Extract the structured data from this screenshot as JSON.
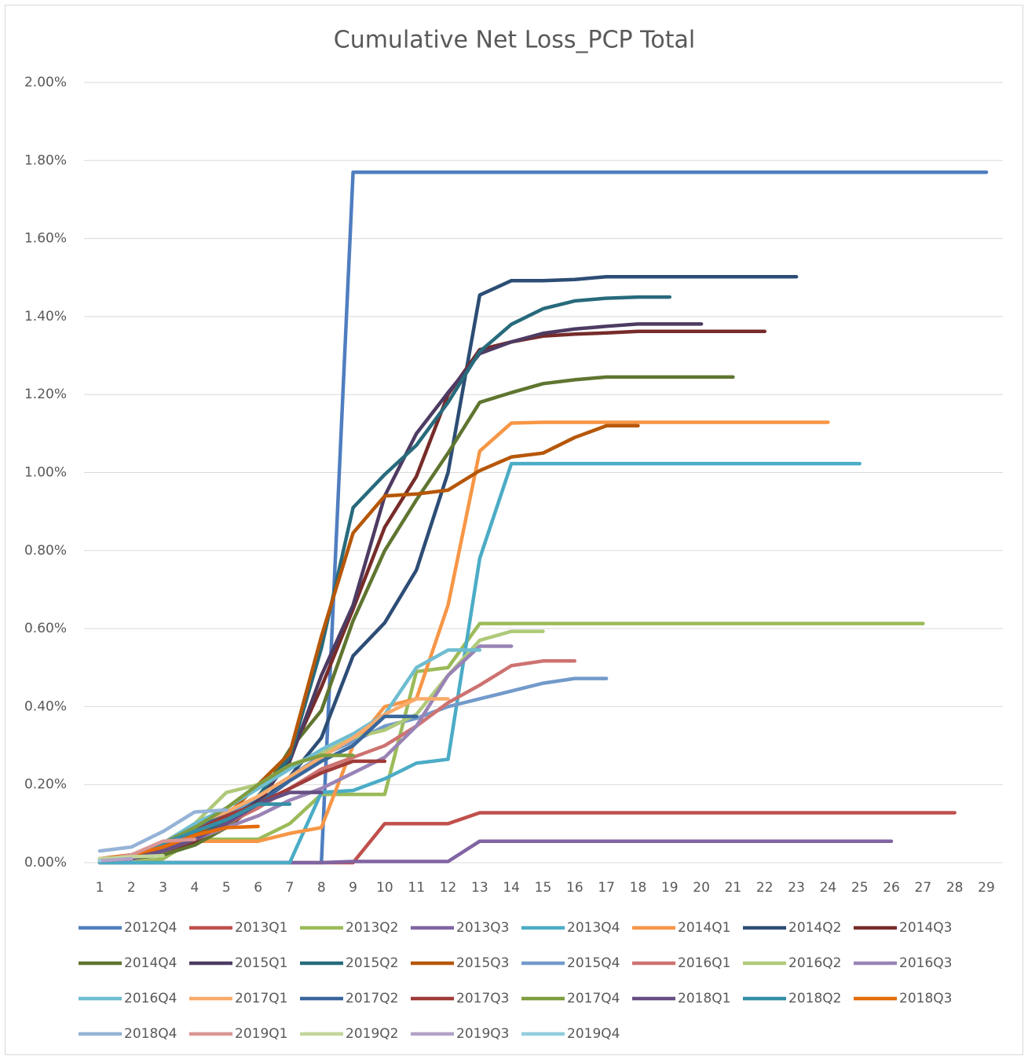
{
  "chart_data": {
    "type": "line",
    "title": "Cumulative Net Loss_PCP Total",
    "categories": [
      "1",
      "2",
      "3",
      "4",
      "5",
      "6",
      "7",
      "8",
      "9",
      "10",
      "11",
      "12",
      "13",
      "14",
      "15",
      "16",
      "17",
      "18",
      "19",
      "20",
      "21",
      "22",
      "23",
      "24",
      "25",
      "26",
      "27",
      "28",
      "29"
    ],
    "ylim": [
      0,
      2
    ],
    "yticks": [
      {
        "value": 0,
        "label": "0.00%"
      },
      {
        "value": 0.2,
        "label": "0.20%"
      },
      {
        "value": 0.4,
        "label": "0.40%"
      },
      {
        "value": 0.6,
        "label": "0.60%"
      },
      {
        "value": 0.8,
        "label": "0.80%"
      },
      {
        "value": 1,
        "label": "1.00%"
      },
      {
        "value": 1.2,
        "label": "1.20%"
      },
      {
        "value": 1.4,
        "label": "1.40%"
      },
      {
        "value": 1.6,
        "label": "1.60%"
      },
      {
        "value": 1.8,
        "label": "1.80%"
      },
      {
        "value": 2,
        "label": "2.00%"
      }
    ],
    "grid": true,
    "legend": "bottom",
    "series": [
      {
        "name": "2012Q4",
        "color": "#4F7EC0",
        "values": [
          null,
          null,
          null,
          null,
          null,
          null,
          null,
          0,
          1.77,
          1.77,
          1.77,
          1.77,
          1.77,
          1.77,
          1.77,
          1.77,
          1.77,
          1.77,
          1.77,
          1.77,
          1.77,
          1.77,
          1.77,
          1.77,
          1.77,
          1.77,
          1.77,
          1.77,
          1.77
        ]
      },
      {
        "name": "2013Q1",
        "color": "#C0504D",
        "values": [
          0,
          0,
          0,
          0,
          0,
          0,
          0,
          0,
          0,
          0.1,
          0.1,
          0.1,
          0.128,
          0.128,
          0.128,
          0.128,
          0.128,
          0.128,
          0.128,
          0.128,
          0.128,
          0.128,
          0.128,
          0.128,
          0.128,
          0.128,
          0.128,
          0.128,
          null
        ]
      },
      {
        "name": "2013Q2",
        "color": "#9BBB59",
        "values": [
          0,
          0,
          0.01,
          0.06,
          0.06,
          0.06,
          0.1,
          0.175,
          0.175,
          0.175,
          0.49,
          0.5,
          0.613,
          0.613,
          0.613,
          0.613,
          0.613,
          0.613,
          0.613,
          0.613,
          0.613,
          0.613,
          0.613,
          0.613,
          0.613,
          0.613,
          0.613,
          null,
          null
        ]
      },
      {
        "name": "2013Q3",
        "color": "#8064A2",
        "values": [
          0,
          0,
          0,
          0,
          0,
          0,
          0,
          0,
          0.003,
          0.003,
          0.003,
          0.003,
          0.055,
          0.055,
          0.055,
          0.055,
          0.055,
          0.055,
          0.055,
          0.055,
          0.055,
          0.055,
          0.055,
          0.055,
          0.055,
          0.055,
          null,
          null,
          null
        ]
      },
      {
        "name": "2013Q4",
        "color": "#4BACC6",
        "values": [
          0,
          0,
          0,
          0,
          0,
          0,
          0,
          0.18,
          0.185,
          0.215,
          0.255,
          0.265,
          0.78,
          1.023,
          1.023,
          1.023,
          1.023,
          1.023,
          1.023,
          1.023,
          1.023,
          1.023,
          1.023,
          1.023,
          1.023,
          null,
          null,
          null,
          null
        ]
      },
      {
        "name": "2014Q1",
        "color": "#F79646",
        "values": [
          0.01,
          0.02,
          0.04,
          0.055,
          0.055,
          0.055,
          0.075,
          0.09,
          0.3,
          0.4,
          0.42,
          0.66,
          1.055,
          1.127,
          1.129,
          1.129,
          1.129,
          1.129,
          1.129,
          1.129,
          1.129,
          1.129,
          1.129,
          1.129,
          null,
          null,
          null,
          null,
          null
        ]
      },
      {
        "name": "2014Q2",
        "color": "#2C4D75",
        "values": [
          0.005,
          0.01,
          0.03,
          0.06,
          0.1,
          0.15,
          0.22,
          0.32,
          0.53,
          0.615,
          0.75,
          1.0,
          1.455,
          1.492,
          1.492,
          1.495,
          1.502,
          1.502,
          1.502,
          1.502,
          1.502,
          1.502,
          1.502,
          null,
          null,
          null,
          null,
          null,
          null
        ]
      },
      {
        "name": "2014Q3",
        "color": "#772C2A",
        "values": [
          0.005,
          0.01,
          0.02,
          0.05,
          0.09,
          0.15,
          0.27,
          0.45,
          0.65,
          0.86,
          0.99,
          1.2,
          1.315,
          1.335,
          1.35,
          1.355,
          1.358,
          1.362,
          1.362,
          1.362,
          1.362,
          1.362,
          null,
          null,
          null,
          null,
          null,
          null,
          null
        ]
      },
      {
        "name": "2014Q4",
        "color": "#5F7530",
        "values": [
          0.005,
          0.01,
          0.02,
          0.045,
          0.09,
          0.16,
          0.29,
          0.39,
          0.62,
          0.8,
          0.93,
          1.05,
          1.18,
          1.205,
          1.228,
          1.238,
          1.245,
          1.245,
          1.245,
          1.245,
          1.245,
          null,
          null,
          null,
          null,
          null,
          null,
          null,
          null
        ]
      },
      {
        "name": "2015Q1",
        "color": "#4D3B62",
        "values": [
          0.005,
          0.01,
          0.03,
          0.06,
          0.1,
          0.16,
          0.26,
          0.48,
          0.66,
          0.94,
          1.1,
          1.205,
          1.305,
          1.335,
          1.357,
          1.368,
          1.375,
          1.381,
          1.381,
          1.381,
          null,
          null,
          null,
          null,
          null,
          null,
          null,
          null,
          null
        ]
      },
      {
        "name": "2015Q2",
        "color": "#276A7C",
        "values": [
          0.005,
          0.015,
          0.035,
          0.065,
          0.11,
          0.17,
          0.27,
          0.55,
          0.91,
          0.995,
          1.07,
          1.18,
          1.31,
          1.38,
          1.42,
          1.44,
          1.447,
          1.45,
          1.45,
          null,
          null,
          null,
          null,
          null,
          null,
          null,
          null,
          null,
          null
        ]
      },
      {
        "name": "2015Q3",
        "color": "#B65708",
        "values": [
          0.005,
          0.015,
          0.04,
          0.07,
          0.12,
          0.2,
          0.28,
          0.58,
          0.845,
          0.94,
          0.945,
          0.955,
          1.005,
          1.04,
          1.05,
          1.09,
          1.12,
          1.12,
          null,
          null,
          null,
          null,
          null,
          null,
          null,
          null,
          null,
          null,
          null
        ]
      },
      {
        "name": "2015Q4",
        "color": "#729ACA",
        "values": [
          0.01,
          0.02,
          0.04,
          0.08,
          0.12,
          0.17,
          0.22,
          0.275,
          0.31,
          0.35,
          0.37,
          0.4,
          0.42,
          0.44,
          0.46,
          0.472,
          0.472,
          null,
          null,
          null,
          null,
          null,
          null,
          null,
          null,
          null,
          null,
          null,
          null
        ]
      },
      {
        "name": "2016Q1",
        "color": "#CD7371",
        "values": [
          0.005,
          0.015,
          0.03,
          0.06,
          0.1,
          0.14,
          0.19,
          0.24,
          0.27,
          0.3,
          0.35,
          0.41,
          0.455,
          0.505,
          0.517,
          0.517,
          null,
          null,
          null,
          null,
          null,
          null,
          null,
          null,
          null,
          null,
          null,
          null,
          null
        ]
      },
      {
        "name": "2016Q2",
        "color": "#AFC97A",
        "values": [
          0.005,
          0.02,
          0.05,
          0.1,
          0.18,
          0.2,
          0.25,
          0.28,
          0.32,
          0.34,
          0.38,
          0.48,
          0.57,
          0.593,
          0.593,
          null,
          null,
          null,
          null,
          null,
          null,
          null,
          null,
          null,
          null,
          null,
          null,
          null,
          null
        ]
      },
      {
        "name": "2016Q3",
        "color": "#9983B5",
        "values": [
          0.005,
          0.01,
          0.03,
          0.06,
          0.09,
          0.12,
          0.16,
          0.19,
          0.23,
          0.27,
          0.35,
          0.48,
          0.555,
          0.555,
          null,
          null,
          null,
          null,
          null,
          null,
          null,
          null,
          null,
          null,
          null,
          null,
          null,
          null,
          null
        ]
      },
      {
        "name": "2016Q4",
        "color": "#6FBDD1",
        "values": [
          0.005,
          0.02,
          0.05,
          0.1,
          0.14,
          0.19,
          0.24,
          0.29,
          0.33,
          0.38,
          0.5,
          0.545,
          0.545,
          null,
          null,
          null,
          null,
          null,
          null,
          null,
          null,
          null,
          null,
          null,
          null,
          null,
          null,
          null,
          null
        ]
      },
      {
        "name": "2017Q1",
        "color": "#F9AB6B",
        "values": [
          0.005,
          0.02,
          0.05,
          0.09,
          0.13,
          0.17,
          0.22,
          0.27,
          0.32,
          0.38,
          0.42,
          0.42,
          null,
          null,
          null,
          null,
          null,
          null,
          null,
          null,
          null,
          null,
          null,
          null,
          null,
          null,
          null,
          null,
          null
        ]
      },
      {
        "name": "2017Q2",
        "color": "#3A679C",
        "values": [
          0.005,
          0.02,
          0.05,
          0.09,
          0.12,
          0.15,
          0.21,
          0.26,
          0.3,
          0.375,
          0.375,
          null,
          null,
          null,
          null,
          null,
          null,
          null,
          null,
          null,
          null,
          null,
          null,
          null,
          null,
          null,
          null,
          null,
          null
        ]
      },
      {
        "name": "2017Q3",
        "color": "#9F3B38",
        "values": [
          0.005,
          0.015,
          0.04,
          0.08,
          0.12,
          0.15,
          0.19,
          0.23,
          0.26,
          0.26,
          null,
          null,
          null,
          null,
          null,
          null,
          null,
          null,
          null,
          null,
          null,
          null,
          null,
          null,
          null,
          null,
          null,
          null,
          null
        ]
      },
      {
        "name": "2017Q4",
        "color": "#7F9D40",
        "values": [
          0.005,
          0.02,
          0.05,
          0.09,
          0.14,
          0.2,
          0.25,
          0.275,
          0.275,
          null,
          null,
          null,
          null,
          null,
          null,
          null,
          null,
          null,
          null,
          null,
          null,
          null,
          null,
          null,
          null,
          null,
          null,
          null,
          null
        ]
      },
      {
        "name": "2018Q1",
        "color": "#664F83",
        "values": [
          0.005,
          0.01,
          0.03,
          0.06,
          0.1,
          0.15,
          0.18,
          0.18,
          null,
          null,
          null,
          null,
          null,
          null,
          null,
          null,
          null,
          null,
          null,
          null,
          null,
          null,
          null,
          null,
          null,
          null,
          null,
          null,
          null
        ]
      },
      {
        "name": "2018Q2",
        "color": "#358EA6",
        "values": [
          0.005,
          0.02,
          0.05,
          0.08,
          0.11,
          0.15,
          0.15,
          null,
          null,
          null,
          null,
          null,
          null,
          null,
          null,
          null,
          null,
          null,
          null,
          null,
          null,
          null,
          null,
          null,
          null,
          null,
          null,
          null,
          null
        ]
      },
      {
        "name": "2018Q3",
        "color": "#E46C0A",
        "values": [
          0.01,
          0.02,
          0.04,
          0.07,
          0.09,
          0.093,
          null,
          null,
          null,
          null,
          null,
          null,
          null,
          null,
          null,
          null,
          null,
          null,
          null,
          null,
          null,
          null,
          null,
          null,
          null,
          null,
          null,
          null,
          null
        ]
      },
      {
        "name": "2018Q4",
        "color": "#95B3D7",
        "values": [
          0.03,
          0.04,
          0.08,
          0.13,
          0.135,
          null,
          null,
          null,
          null,
          null,
          null,
          null,
          null,
          null,
          null,
          null,
          null,
          null,
          null,
          null,
          null,
          null,
          null,
          null,
          null,
          null,
          null,
          null,
          null
        ]
      },
      {
        "name": "2019Q1",
        "color": "#D99694",
        "values": [
          0.005,
          0.02,
          0.055,
          0.06,
          null,
          null,
          null,
          null,
          null,
          null,
          null,
          null,
          null,
          null,
          null,
          null,
          null,
          null,
          null,
          null,
          null,
          null,
          null,
          null,
          null,
          null,
          null,
          null,
          null
        ]
      },
      {
        "name": "2019Q2",
        "color": "#C3D69B",
        "values": [
          0.01,
          0.015,
          0.018,
          null,
          null,
          null,
          null,
          null,
          null,
          null,
          null,
          null,
          null,
          null,
          null,
          null,
          null,
          null,
          null,
          null,
          null,
          null,
          null,
          null,
          null,
          null,
          null,
          null,
          null
        ]
      },
      {
        "name": "2019Q3",
        "color": "#B3A2C7",
        "values": [
          0.005,
          0.01,
          null,
          null,
          null,
          null,
          null,
          null,
          null,
          null,
          null,
          null,
          null,
          null,
          null,
          null,
          null,
          null,
          null,
          null,
          null,
          null,
          null,
          null,
          null,
          null,
          null,
          null,
          null
        ]
      },
      {
        "name": "2019Q4",
        "color": "#93CDDD",
        "values": [
          0.005,
          null,
          null,
          null,
          null,
          null,
          null,
          null,
          null,
          null,
          null,
          null,
          null,
          null,
          null,
          null,
          null,
          null,
          null,
          null,
          null,
          null,
          null,
          null,
          null,
          null,
          null,
          null,
          null
        ]
      }
    ]
  }
}
